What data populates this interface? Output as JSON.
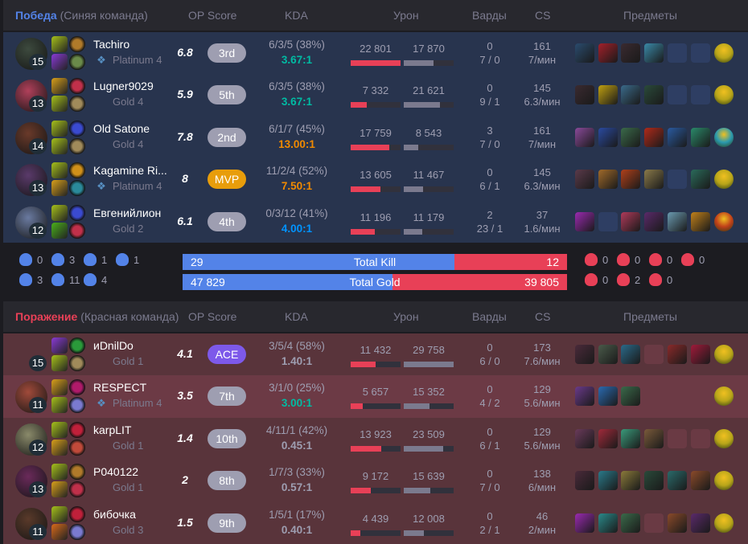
{
  "colors": {
    "win": "#5383e8",
    "loss": "#e84057",
    "kda_gray": "#9e9eb1",
    "kda_teal": "#00bba3",
    "kda_blue": "#0093ff",
    "kda_orange": "#f08a00",
    "badge_gray": "#9e9eb1",
    "badge_mvp": "#e89d0b",
    "badge_ace": "#7d59ea"
  },
  "columns": {
    "op_score": "OP Score",
    "kda": "KDA",
    "damage": "Урон",
    "wards": "Варды",
    "cs": "CS",
    "items": "Предметы"
  },
  "blue": {
    "result": "Победа",
    "team": "(Синяя команда)",
    "players": [
      {
        "name": "Tachiro",
        "level": "15",
        "tier": "Platinum 4",
        "emblem": true,
        "score": "6.8",
        "rank": "3rd",
        "badge": "gray",
        "kda": "6/3/5 (38%)",
        "ratio": "3.67:1",
        "ratio_color": "teal",
        "dealt": "22 801",
        "dealt_v": 22801,
        "taken": "17 870",
        "taken_v": 17870,
        "wards": "0",
        "wards_pp": "7 / 0",
        "cs": "161",
        "cs_min": "7/мин",
        "avatar": "#3d4a3e",
        "spells": [
          "#a7c21a",
          "#8a3ad6"
        ],
        "runes": [
          "#b07a2a",
          "#6a8a4a"
        ],
        "items": [
          "#2a4b6e",
          "#a3202a",
          "#3a2a30",
          "#3a8aa8",
          null,
          null
        ],
        "trinket": "#b8a51a"
      },
      {
        "name": "Lugner9029",
        "level": "13",
        "tier": "Gold 4",
        "emblem": false,
        "score": "5.9",
        "rank": "5th",
        "badge": "gray",
        "kda": "6/3/5 (38%)",
        "ratio": "3.67:1",
        "ratio_color": "teal",
        "dealt": "7 332",
        "dealt_v": 7332,
        "taken": "21 621",
        "taken_v": 21621,
        "wards": "0",
        "wards_pp": "9 / 1",
        "cs": "145",
        "cs_min": "6.3/мин",
        "avatar": "#b0405a",
        "spells": [
          "#d9a01a",
          "#a7c21a"
        ],
        "runes": [
          "#c0304a",
          "#a08a5a"
        ],
        "items": [
          "#3a2a30",
          "#c0a010",
          "#3a6a8a",
          "#2a4a3a",
          null,
          null
        ],
        "trinket": "#b8a51a"
      },
      {
        "name": "Old Satone",
        "level": "14",
        "tier": "Gold 4",
        "emblem": false,
        "score": "7.8",
        "rank": "2nd",
        "badge": "gray",
        "kda": "6/1/7 (45%)",
        "ratio": "13.00:1",
        "ratio_color": "orange",
        "dealt": "17 759",
        "dealt_v": 17759,
        "taken": "8 543",
        "taken_v": 8543,
        "wards": "3",
        "wards_pp": "7 / 0",
        "cs": "161",
        "cs_min": "7/мин",
        "avatar": "#6a3a2a",
        "spells": [
          "#a7c21a",
          "#a7c21a"
        ],
        "runes": [
          "#3a4ad0",
          "#a08a5a"
        ],
        "items": [
          "#8a4a9a",
          "#2a4aa0",
          "#3a6a4a",
          "#b02a1a",
          "#2a5aa0",
          "#2a8a6a"
        ],
        "trinket": "#2a9ab0"
      },
      {
        "name": "Kagamine Ri...",
        "level": "13",
        "tier": "Platinum 4",
        "emblem": true,
        "score": "8",
        "rank": "MVP",
        "badge": "mvp",
        "kda": "11/2/4 (52%)",
        "ratio": "7.50:1",
        "ratio_color": "orange",
        "dealt": "13 605",
        "dealt_v": 13605,
        "taken": "11 467",
        "taken_v": 11467,
        "wards": "0",
        "wards_pp": "6 / 1",
        "cs": "145",
        "cs_min": "6.3/мин",
        "avatar": "#5a3a6a",
        "spells": [
          "#a7c21a",
          "#d9a01a"
        ],
        "runes": [
          "#d0901a",
          "#2a8a9a"
        ],
        "items": [
          "#5a3a4a",
          "#a06a2a",
          "#b0401a",
          "#8a7a4a",
          null,
          "#2a6a5a"
        ],
        "trinket": "#b8a51a"
      },
      {
        "name": "Евгенийлион",
        "level": "12",
        "tier": "Gold 2",
        "emblem": false,
        "score": "6.1",
        "rank": "4th",
        "badge": "gray",
        "kda": "0/3/12 (41%)",
        "ratio": "4.00:1",
        "ratio_color": "blue",
        "dealt": "11 196",
        "dealt_v": 11196,
        "taken": "11 179",
        "taken_v": 11179,
        "wards": "2",
        "wards_pp": "23 / 1",
        "cs": "37",
        "cs_min": "1.6/мин",
        "avatar": "#6a7aa0",
        "spells": [
          "#a7c21a",
          "#4ab01a"
        ],
        "runes": [
          "#3a4ad0",
          "#c0304a"
        ],
        "items": [
          "#9a2ab0",
          null,
          "#b03a5a",
          "#5a2a6a",
          "#6a9ab0",
          "#c0801a"
        ],
        "trinket": "#c0401a"
      }
    ]
  },
  "summary": {
    "blue_objectives": [
      {
        "icon": "baron-icon",
        "value": "0"
      },
      {
        "icon": "dragon-icon",
        "value": "3"
      },
      {
        "icon": "herald-icon",
        "value": "1"
      },
      {
        "icon": "grubs-icon",
        "value": "1"
      },
      {
        "icon": "tower-icon",
        "value": "3"
      },
      {
        "icon": "inhibitor-icon",
        "value": "11"
      },
      {
        "icon": "rift-icon",
        "value": "4"
      }
    ],
    "red_objectives": [
      {
        "icon": "baron-icon",
        "value": "0"
      },
      {
        "icon": "dragon-icon",
        "value": "0"
      },
      {
        "icon": "herald-icon",
        "value": "0"
      },
      {
        "icon": "grubs-icon",
        "value": "0"
      },
      {
        "icon": "tower-icon",
        "value": "0"
      },
      {
        "icon": "inhibitor-icon",
        "value": "2"
      },
      {
        "icon": "rift-icon",
        "value": "0"
      }
    ],
    "kill": {
      "label": "Total Kill",
      "blue": "29",
      "red": "12",
      "blue_v": 29,
      "red_v": 12
    },
    "gold": {
      "label": "Total Gold",
      "blue": "47 829",
      "red": "39 805",
      "blue_v": 47829,
      "red_v": 39805
    }
  },
  "red": {
    "result": "Поражение",
    "team": "(Красная команда)",
    "players": [
      {
        "name": "иDnilDo",
        "level": "15",
        "tier": "Gold 1",
        "emblem": false,
        "score": "4.1",
        "rank": "ACE",
        "badge": "ace",
        "kda": "3/5/4 (58%)",
        "ratio": "1.40:1",
        "ratio_color": "gray",
        "dealt": "11 432",
        "dealt_v": 11432,
        "taken": "29 758",
        "taken_v": 29758,
        "wards": "0",
        "wards_pp": "6 / 0",
        "cs": "173",
        "cs_min": "7.6/мин",
        "avatar": null,
        "spells": [
          "#8a3ad6",
          "#a7c21a"
        ],
        "runes": [
          "#2a9a3a",
          "#a08a5a"
        ],
        "items": [
          "#4a2a3a",
          "#4a5a4a",
          "#2a6a8a",
          null,
          "#8a2a2a",
          "#a01a3a"
        ],
        "trinket": "#b8a51a"
      },
      {
        "name": "RESPECT",
        "level": "11",
        "tier": "Platinum 4",
        "emblem": true,
        "score": "3.5",
        "rank": "7th",
        "badge": "gray",
        "kda": "3/1/0 (25%)",
        "ratio": "3.00:1",
        "ratio_color": "teal",
        "dealt": "5 657",
        "dealt_v": 5657,
        "taken": "15 352",
        "taken_v": 15352,
        "wards": "0",
        "wards_pp": "4 / 2",
        "cs": "129",
        "cs_min": "5.6/мин",
        "avatar": "#a04a3a",
        "highlight": true,
        "spells": [
          "#d9a01a",
          "#a7c21a"
        ],
        "runes": [
          "#b01a6a",
          "#7a7ad0"
        ],
        "items": [
          "#6a3a8a",
          "#2a6ab0",
          "#3a6a4a",
          null,
          null,
          null
        ],
        "trinket": "#b8a51a"
      },
      {
        "name": "karpLIT",
        "level": "12",
        "tier": "Gold 1",
        "emblem": false,
        "score": "1.4",
        "rank": "10th",
        "badge": "gray",
        "kda": "4/11/1 (42%)",
        "ratio": "0.45:1",
        "ratio_color": "gray",
        "dealt": "13 923",
        "dealt_v": 13923,
        "taken": "23 509",
        "taken_v": 23509,
        "wards": "0",
        "wards_pp": "6 / 1",
        "cs": "129",
        "cs_min": "5.6/мин",
        "avatar": "#8a8a6a",
        "spells": [
          "#a7c21a",
          "#d9a01a"
        ],
        "runes": [
          "#c0203a",
          "#c04a3a"
        ],
        "items": [
          "#6a3a5a",
          "#a02a3a",
          "#3a9a7a",
          "#7a5a3a",
          null,
          null
        ],
        "trinket": "#b8a51a"
      },
      {
        "name": "P040122",
        "level": "13",
        "tier": "Gold 1",
        "emblem": false,
        "score": "2",
        "rank": "8th",
        "badge": "gray",
        "kda": "1/7/3 (33%)",
        "ratio": "0.57:1",
        "ratio_color": "gray",
        "dealt": "9 172",
        "dealt_v": 9172,
        "taken": "15 639",
        "taken_v": 15639,
        "wards": "0",
        "wards_pp": "7 / 0",
        "cs": "138",
        "cs_min": "6/мин",
        "avatar": "#6a2a5a",
        "spells": [
          "#a7c21a",
          "#d9a01a"
        ],
        "runes": [
          "#b07a2a",
          "#c0304a"
        ],
        "items": [
          "#4a2a3a",
          "#2a7a8a",
          "#8a7a3a",
          "#2a4a3a",
          "#2a6a6a",
          "#8a4a2a"
        ],
        "trinket": "#b8a51a"
      },
      {
        "name": "бибочка",
        "level": "11",
        "tier": "Gold 3",
        "emblem": false,
        "score": "1.5",
        "rank": "9th",
        "badge": "gray",
        "kda": "1/5/1 (17%)",
        "ratio": "0.40:1",
        "ratio_color": "gray",
        "dealt": "4 439",
        "dealt_v": 4439,
        "taken": "12 008",
        "taken_v": 12008,
        "wards": "0",
        "wards_pp": "2 / 1",
        "cs": "46",
        "cs_min": "2/мин",
        "avatar": "#5a3a2a",
        "spells": [
          "#a7c21a",
          "#d96a1a"
        ],
        "runes": [
          "#c0203a",
          "#7a7ad0"
        ],
        "items": [
          "#9a2ab0",
          "#2a8a8a",
          "#3a6a4a",
          null,
          "#8a4a2a",
          "#5a2a6a"
        ],
        "trinket": "#b8a51a"
      }
    ]
  }
}
